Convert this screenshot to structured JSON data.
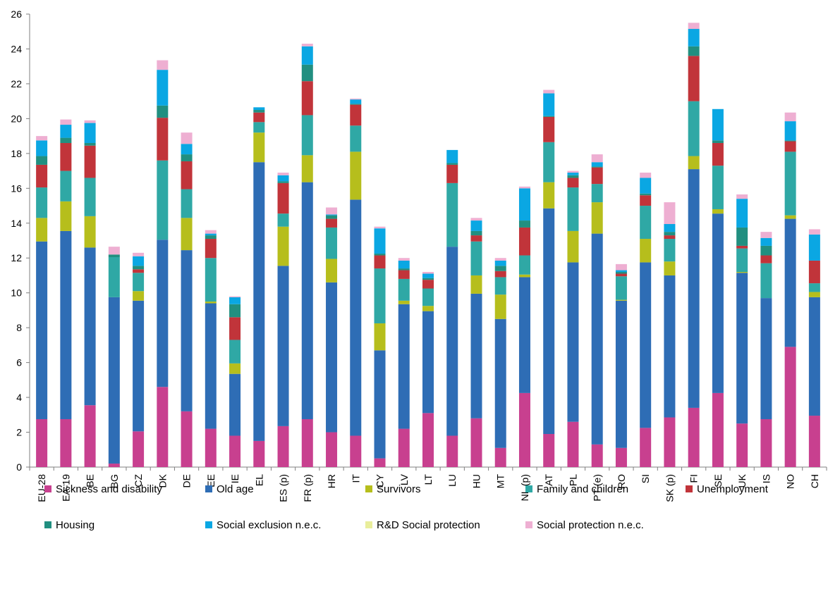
{
  "chart_data": {
    "type": "bar",
    "stacked": true,
    "title": "",
    "xlabel": "",
    "ylabel": "",
    "ylim": [
      0,
      26
    ],
    "yticks": [
      0,
      2,
      4,
      6,
      8,
      10,
      12,
      14,
      16,
      18,
      20,
      22,
      24,
      26
    ],
    "grid": false,
    "legend_position": "bottom",
    "categories": [
      "EU-28",
      "EA-19",
      "BE",
      "BG",
      "CZ",
      "DK",
      "DE",
      "EE",
      "IE",
      "EL",
      "ES (p)",
      "FR (p)",
      "HR",
      "IT",
      "CY",
      "LV",
      "LT",
      "LU",
      "HU",
      "MT",
      "NL (p)",
      "AT",
      "PL",
      "PT (e)",
      "RO",
      "SI",
      "SK (p)",
      "FI",
      "SE",
      "UK",
      "IS",
      "NO",
      "CH"
    ],
    "series": [
      {
        "name": "Sickness and disability",
        "color": "#c8408f",
        "values": [
          2.75,
          2.75,
          3.55,
          0.2,
          2.05,
          4.6,
          3.2,
          2.2,
          1.8,
          1.5,
          2.35,
          2.75,
          2.0,
          1.8,
          0.5,
          2.2,
          3.1,
          1.8,
          2.8,
          1.1,
          4.25,
          1.9,
          2.6,
          1.3,
          1.1,
          2.25,
          2.85,
          3.4,
          4.25,
          2.5,
          2.75,
          6.9,
          2.95
        ]
      },
      {
        "name": "Old age",
        "color": "#2e6db5",
        "values": [
          10.2,
          10.8,
          9.05,
          9.55,
          7.5,
          8.45,
          9.25,
          7.2,
          3.55,
          16.0,
          9.2,
          13.6,
          8.6,
          13.55,
          6.2,
          7.15,
          5.85,
          10.85,
          7.15,
          7.4,
          6.65,
          12.95,
          9.15,
          12.1,
          8.45,
          9.5,
          8.15,
          13.7,
          10.3,
          8.65,
          6.95,
          7.35,
          6.8
        ]
      },
      {
        "name": "Survivors",
        "color": "#b6be1c",
        "values": [
          1.35,
          1.7,
          1.8,
          0.0,
          0.55,
          0.0,
          1.85,
          0.1,
          0.6,
          1.7,
          2.25,
          1.55,
          1.35,
          2.75,
          1.55,
          0.2,
          0.3,
          0.0,
          1.05,
          1.4,
          0.15,
          1.5,
          1.8,
          1.8,
          0.05,
          1.35,
          0.8,
          0.75,
          0.25,
          0.05,
          0.0,
          0.2,
          0.3
        ]
      },
      {
        "name": "Family and children",
        "color": "#2fa8a5",
        "values": [
          1.75,
          1.75,
          2.2,
          2.3,
          1.05,
          4.55,
          1.65,
          2.5,
          1.35,
          0.6,
          0.75,
          2.3,
          1.8,
          1.5,
          3.15,
          1.25,
          1.0,
          3.65,
          1.95,
          1.0,
          1.1,
          2.3,
          2.5,
          1.05,
          1.35,
          1.9,
          1.3,
          3.15,
          2.5,
          1.35,
          2.0,
          3.65,
          0.5
        ]
      },
      {
        "name": "Unemployment",
        "color": "#c1343a",
        "values": [
          1.3,
          1.6,
          1.85,
          0.0,
          0.2,
          2.45,
          1.6,
          1.1,
          1.3,
          0.55,
          1.75,
          1.95,
          0.5,
          1.2,
          0.75,
          0.5,
          0.5,
          1.05,
          0.35,
          0.35,
          1.6,
          1.45,
          0.55,
          0.95,
          0.15,
          0.6,
          0.2,
          2.6,
          1.3,
          0.15,
          0.45,
          0.6,
          1.3
        ]
      },
      {
        "name": "Housing",
        "color": "#218f80",
        "values": [
          0.5,
          0.3,
          0.15,
          0.15,
          0.2,
          0.7,
          0.4,
          0.2,
          0.75,
          0.15,
          0.1,
          0.95,
          0.2,
          0.05,
          0.1,
          0.1,
          0.1,
          0.1,
          0.25,
          0.3,
          0.4,
          0.05,
          0.15,
          0.05,
          0.1,
          0.1,
          0.2,
          0.55,
          0.15,
          1.05,
          0.55,
          0.05,
          0.0
        ]
      },
      {
        "name": "Social exclusion n.e.c.",
        "color": "#0aa7e3",
        "values": [
          0.9,
          0.75,
          1.15,
          0.0,
          0.55,
          2.05,
          0.6,
          0.1,
          0.4,
          0.15,
          0.35,
          1.05,
          0.05,
          0.25,
          1.45,
          0.45,
          0.25,
          0.75,
          0.6,
          0.3,
          1.85,
          1.3,
          0.15,
          0.25,
          0.1,
          0.9,
          0.45,
          1.0,
          1.8,
          1.65,
          0.45,
          1.1,
          1.5
        ]
      },
      {
        "name": "R&D Social protection",
        "color": "#e9ee9b",
        "values": [
          0.0,
          0.0,
          0.0,
          0.0,
          0.0,
          0.0,
          0.0,
          0.0,
          0.0,
          0.0,
          0.0,
          0.0,
          0.0,
          0.0,
          0.0,
          0.0,
          0.0,
          0.0,
          0.0,
          0.0,
          0.0,
          0.0,
          0.0,
          0.0,
          0.0,
          0.0,
          0.0,
          0.0,
          0.0,
          0.0,
          0.0,
          0.0,
          0.0
        ]
      },
      {
        "name": "Social protection n.e.c.",
        "color": "#eeafd2",
        "values": [
          0.25,
          0.3,
          0.15,
          0.45,
          0.2,
          0.55,
          0.65,
          0.2,
          0.05,
          0.0,
          0.15,
          0.15,
          0.4,
          0.05,
          0.1,
          0.15,
          0.1,
          0.0,
          0.15,
          0.15,
          0.1,
          0.2,
          0.1,
          0.45,
          0.35,
          0.3,
          1.25,
          0.35,
          0.0,
          0.25,
          0.35,
          0.5,
          0.3
        ]
      }
    ]
  }
}
